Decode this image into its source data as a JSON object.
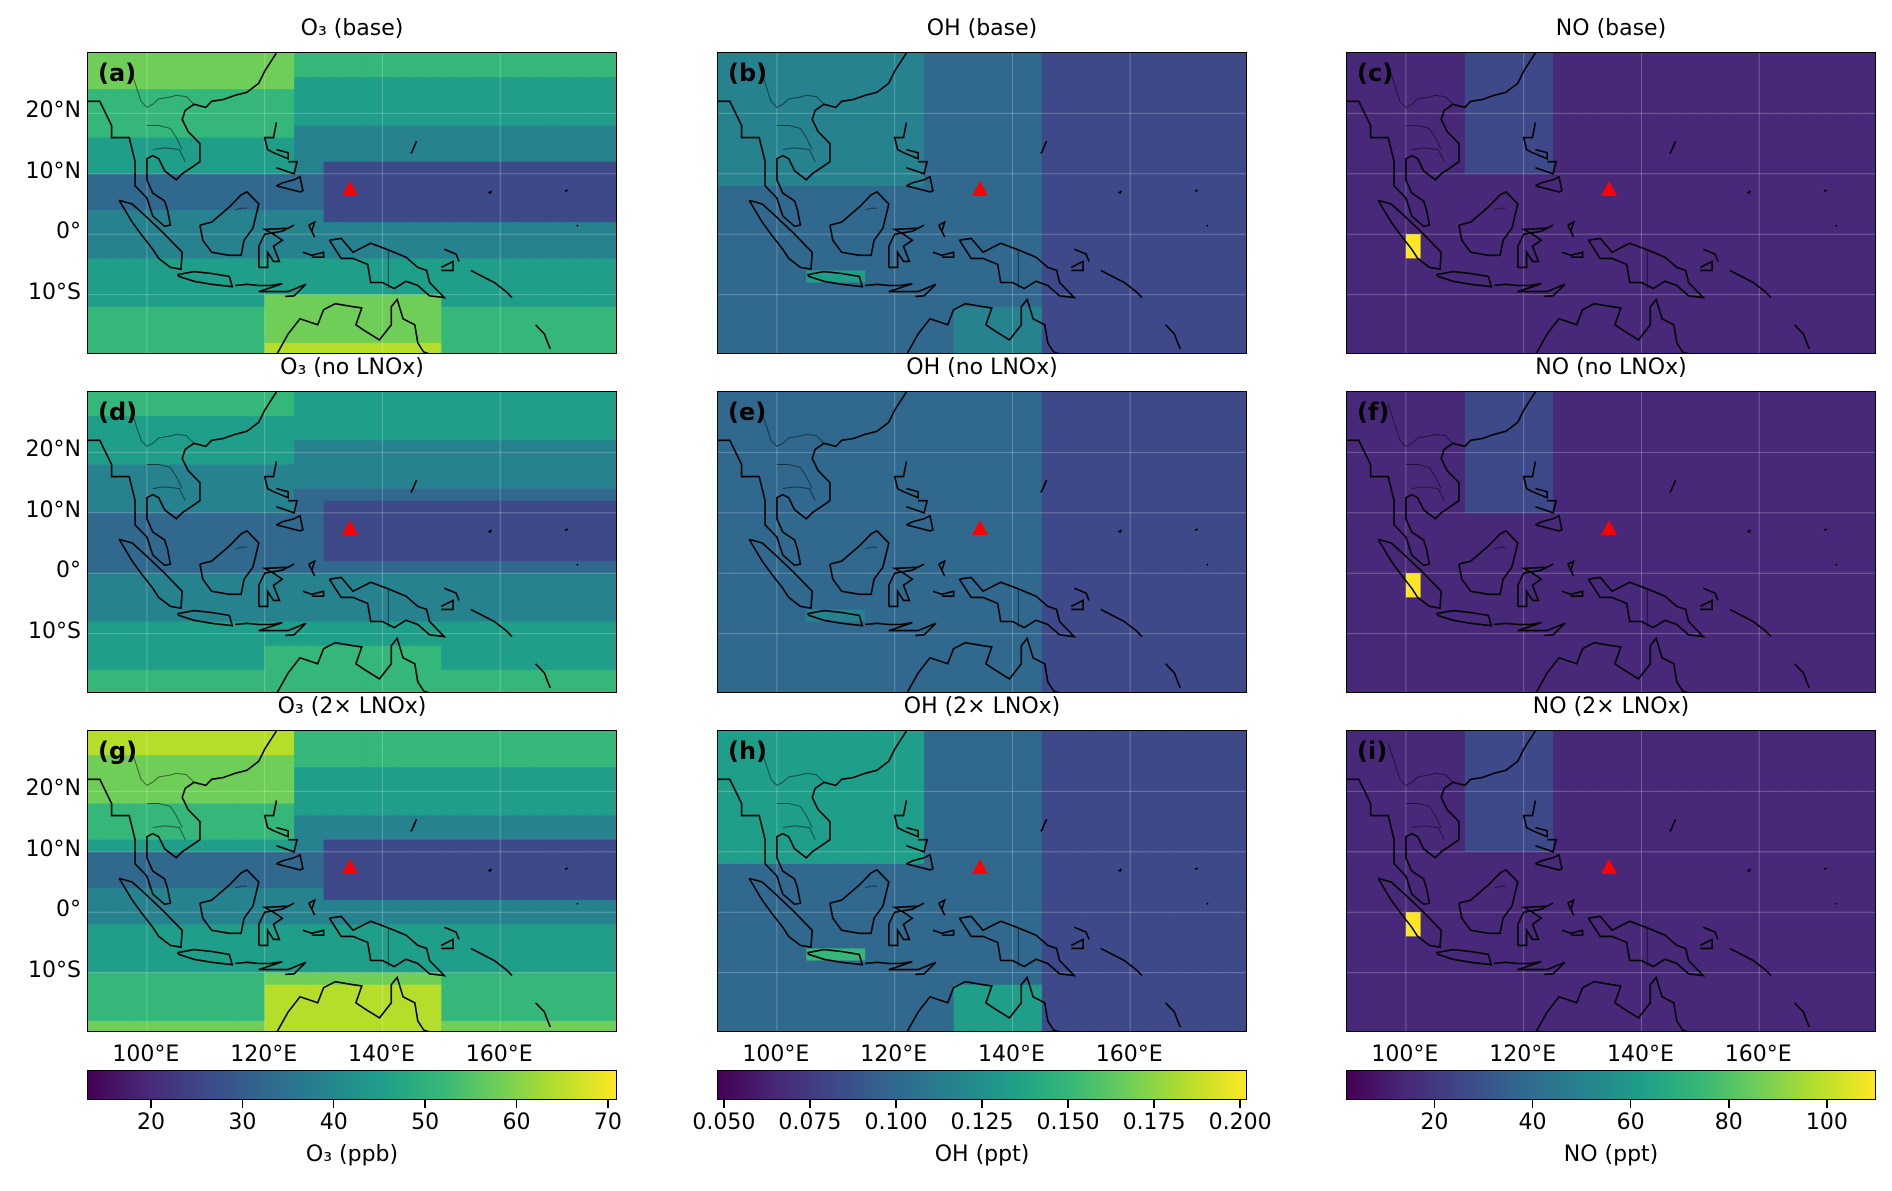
{
  "figure": {
    "titles": [
      [
        "O₃ (base)",
        "OH (base)",
        "NO (base)"
      ],
      [
        "O₃ (no LNOx)",
        "OH (no LNOx)",
        "NO (no LNOx)"
      ],
      [
        "O₃ (2× LNOx)",
        "OH (2× LNOx)",
        "NO (2× LNOx)"
      ]
    ],
    "letters": [
      [
        "(a)",
        "(b)",
        "(c)"
      ],
      [
        "(d)",
        "(e)",
        "(f)"
      ],
      [
        "(g)",
        "(h)",
        "(i)"
      ]
    ],
    "lat_labels": [
      "20°N",
      "10°N",
      "0°",
      "10°S"
    ],
    "lon_labels": [
      "100°E",
      "120°E",
      "140°E",
      "160°E"
    ],
    "map_extent": {
      "lon": [
        90,
        180
      ],
      "lat": [
        -20,
        30
      ]
    },
    "site_marker": {
      "lon": 134.5,
      "lat": 7.3,
      "color": "#ff0000"
    },
    "colormap": "viridis",
    "colors": {
      "low": "#440154",
      "mid": "#26828e",
      "high": "#fde725",
      "site": "#ff0000",
      "coast": "#000000"
    }
  },
  "colorbars": [
    {
      "label": "O₃ (ppb)",
      "range": [
        13,
        71
      ],
      "ticks": [
        "20",
        "30",
        "40",
        "50",
        "60",
        "70"
      ],
      "tick_values": [
        20,
        30,
        40,
        50,
        60,
        70
      ]
    },
    {
      "label": "OH (ppt)",
      "range": [
        0.048,
        0.202
      ],
      "ticks": [
        "0.050",
        "0.075",
        "0.100",
        "0.125",
        "0.150",
        "0.175",
        "0.200"
      ],
      "tick_values": [
        0.05,
        0.075,
        0.1,
        0.125,
        0.15,
        0.175,
        0.2
      ]
    },
    {
      "label": "NO (ppt)",
      "range": [
        2,
        110
      ],
      "ticks": [
        "20",
        "40",
        "60",
        "80",
        "100"
      ],
      "tick_values": [
        20,
        40,
        60,
        80,
        100
      ]
    }
  ]
}
